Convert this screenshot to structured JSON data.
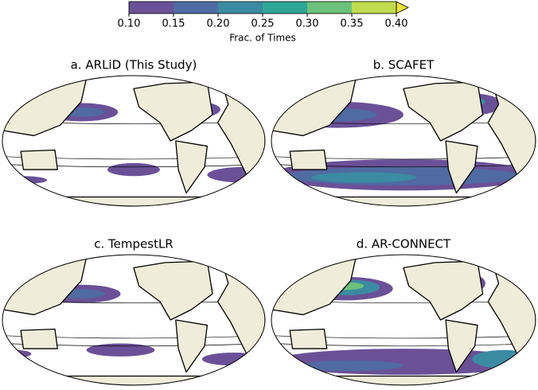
{
  "colorbar": {
    "label": "Frac. of Times",
    "ticks": [
      {
        "value": 0.1,
        "label": "0.10"
      },
      {
        "value": 0.15,
        "label": "0.15"
      },
      {
        "value": 0.2,
        "label": "0.20"
      },
      {
        "value": 0.25,
        "label": "0.25"
      },
      {
        "value": 0.3,
        "label": "0.30"
      },
      {
        "value": 0.35,
        "label": "0.35"
      },
      {
        "value": 0.4,
        "label": "0.40"
      }
    ],
    "colors": [
      "#6a5197",
      "#4f6ba1",
      "#3b8ba2",
      "#2ea698",
      "#6cc27a",
      "#c0dc4e"
    ],
    "extend_color": "#ece23a"
  },
  "panels": [
    {
      "title": "a. ARLiD (This Study)"
    },
    {
      "title": "b. SCAFET"
    },
    {
      "title": "c. TempestLR"
    },
    {
      "title": "d. AR-CONNECT"
    }
  ]
}
